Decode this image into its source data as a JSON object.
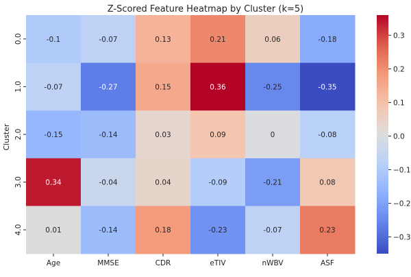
{
  "chart_data": {
    "type": "heatmap",
    "title": "Z-Scored Feature Heatmap by Cluster (k=5)",
    "xlabel": "",
    "ylabel": "Cluster",
    "x_categories": [
      "Age",
      "MMSE",
      "CDR",
      "eTIV",
      "nWBV",
      "ASF"
    ],
    "y_categories": [
      "0.0",
      "1.0",
      "2.0",
      "3.0",
      "4.0"
    ],
    "values": [
      [
        -0.1,
        -0.07,
        0.13,
        0.21,
        0.06,
        -0.18
      ],
      [
        -0.07,
        -0.27,
        0.15,
        0.36,
        -0.25,
        -0.35
      ],
      [
        -0.15,
        -0.14,
        0.03,
        0.09,
        0,
        -0.08
      ],
      [
        0.34,
        -0.04,
        0.04,
        -0.09,
        -0.21,
        0.08
      ],
      [
        0.01,
        -0.14,
        0.18,
        -0.23,
        -0.07,
        0.23
      ]
    ],
    "colormap": "coolwarm",
    "vmin": -0.35,
    "vmax": 0.36,
    "colorbar_ticks": [
      0.3,
      0.2,
      0.1,
      0.0,
      -0.1,
      -0.2,
      -0.3
    ],
    "colorbar_tick_labels": [
      "0.3",
      "0.2",
      "0.1",
      "0.0",
      "−0.1",
      "−0.2",
      "−0.3"
    ],
    "annotations": true
  }
}
